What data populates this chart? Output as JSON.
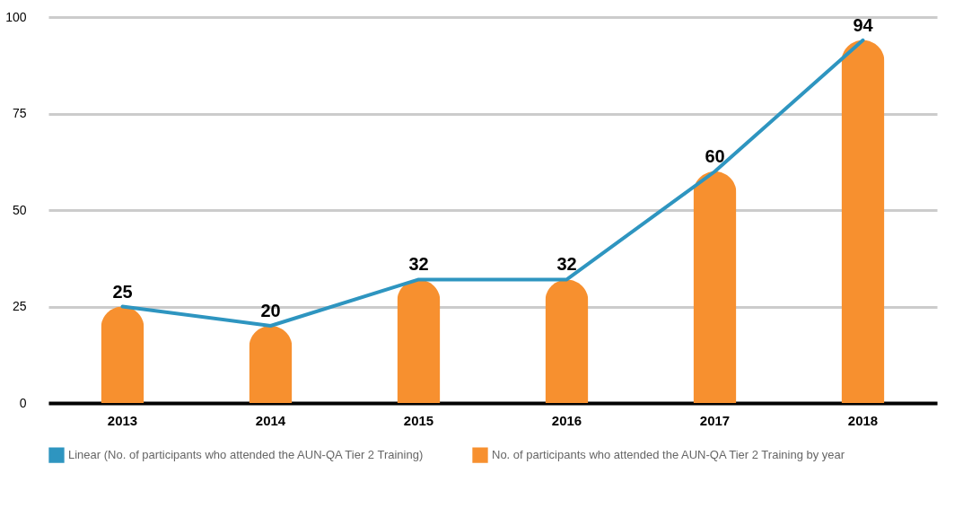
{
  "chart_data": {
    "type": "bar",
    "categories": [
      "2013",
      "2014",
      "2015",
      "2016",
      "2017",
      "2018"
    ],
    "series": [
      {
        "name": "Linear (No. of participants who attended the AUN-QA Tier 2 Training)",
        "type": "line",
        "color": "#2e95c0",
        "values": [
          25,
          20,
          32,
          32,
          60,
          94
        ]
      },
      {
        "name": "No. of participants who attended the AUN-QA Tier 2 Training by year",
        "color": "#f7902f",
        "values": [
          25,
          20,
          32,
          32,
          60,
          94
        ],
        "data_labels": true
      }
    ],
    "ylim": [
      0,
      100
    ],
    "yticks": [
      0,
      25,
      50,
      75,
      100
    ],
    "grid": "y",
    "legend": "bottom"
  }
}
